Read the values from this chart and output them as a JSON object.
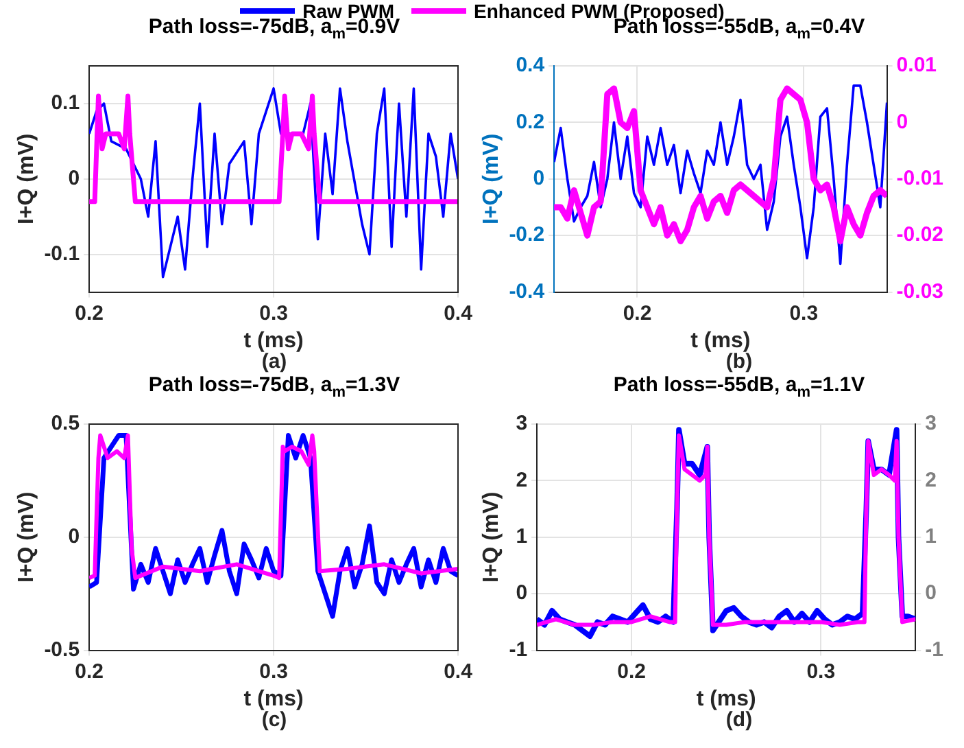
{
  "chart_data": [
    {
      "type": "line",
      "title": "Path loss=-75dB, a$_{m}$=0.9V",
      "xlabel": "t (ms)",
      "ylabel": "I+Q (mV)",
      "annotations": [
        "(a)"
      ],
      "xlim": [
        0.2,
        0.4
      ],
      "xticks": [
        0.2,
        0.3,
        0.4
      ],
      "ylim": [
        -0.15,
        0.15
      ],
      "yticks": [
        -0.1,
        0,
        0.1
      ],
      "grid": true,
      "legend": "top",
      "x": [
        0.2,
        0.204,
        0.208,
        0.212,
        0.216,
        0.22,
        0.224,
        0.228,
        0.232,
        0.236,
        0.24,
        0.244,
        0.248,
        0.252,
        0.256,
        0.26,
        0.264,
        0.268,
        0.272,
        0.276,
        0.28,
        0.284,
        0.288,
        0.292,
        0.296,
        0.3,
        0.304,
        0.308,
        0.312,
        0.316,
        0.32,
        0.324,
        0.328,
        0.332,
        0.336,
        0.34,
        0.344,
        0.348,
        0.352,
        0.356,
        0.36,
        0.364,
        0.368,
        0.372,
        0.376,
        0.38,
        0.384,
        0.388,
        0.392,
        0.396,
        0.4
      ],
      "series": [
        {
          "name": "Raw PWM",
          "color": "#0000ff",
          "values": [
            0.06,
            0.09,
            0.1,
            0.05,
            null,
            0.04,
            null,
            0.0,
            -0.05,
            0.05,
            -0.13,
            null,
            -0.05,
            -0.12,
            0.0,
            0.1,
            -0.09,
            0.06,
            -0.06,
            0.02,
            null,
            0.05,
            -0.06,
            0.06,
            null,
            0.12,
            0.06,
            0.06,
            null,
            0.06,
            0.1,
            -0.08,
            0.06,
            -0.02,
            0.12,
            0.05,
            null,
            -0.06,
            -0.1,
            0.06,
            0.12,
            -0.09,
            0.1,
            -0.05,
            0.12,
            -0.12,
            0.06,
            0.03,
            -0.05,
            0.06,
            0.0
          ]
        },
        {
          "name": "Enhanced PWM (Proposed)",
          "color": "#ff00ff",
          "x": [
            0.2,
            0.203,
            0.205,
            0.207,
            0.209,
            0.212,
            0.216,
            0.219,
            0.221,
            0.222,
            0.225,
            0.23,
            0.26,
            0.3,
            0.303,
            0.305,
            0.306,
            0.308,
            0.31,
            0.315,
            0.319,
            0.321,
            0.322,
            0.325,
            0.33,
            0.36,
            0.4
          ],
          "values": [
            -0.03,
            -0.03,
            0.11,
            0.04,
            0.06,
            0.06,
            0.06,
            0.04,
            0.11,
            0.06,
            -0.03,
            -0.03,
            -0.03,
            -0.03,
            -0.03,
            0.06,
            0.11,
            0.04,
            0.06,
            0.06,
            0.04,
            0.11,
            0.06,
            -0.03,
            -0.03,
            -0.03,
            -0.03
          ]
        }
      ]
    },
    {
      "type": "line",
      "title": "Path loss=-55dB, a$_{m}$=0.4V",
      "xlabel": "t (ms)",
      "ylabel": "I+Q (mV)",
      "annotations": [
        "(b)"
      ],
      "xlim": [
        0.15,
        0.35
      ],
      "xticks": [
        0.2,
        0.3
      ],
      "ylim": [
        -0.4,
        0.4
      ],
      "yticks": [
        -0.4,
        -0.2,
        0,
        0.2,
        0.4
      ],
      "y2lim": [
        -0.03,
        0.01
      ],
      "y2ticks": [
        -0.03,
        -0.02,
        -0.01,
        0,
        0.01
      ],
      "grid": true,
      "x": [
        0.15,
        0.154,
        0.158,
        0.162,
        0.166,
        0.17,
        0.174,
        0.178,
        0.182,
        0.186,
        0.19,
        0.194,
        0.198,
        0.202,
        0.206,
        0.21,
        0.214,
        0.218,
        0.222,
        0.226,
        0.23,
        0.234,
        0.238,
        0.242,
        0.246,
        0.25,
        0.254,
        0.258,
        0.262,
        0.266,
        0.27,
        0.274,
        0.278,
        0.282,
        0.286,
        0.29,
        0.294,
        0.298,
        0.302,
        0.306,
        0.31,
        0.314,
        0.318,
        0.322,
        0.326,
        0.33,
        0.334,
        0.338,
        0.342,
        0.346,
        0.35
      ],
      "series": [
        {
          "color": "#0000ff",
          "values": [
            0.06,
            0.18,
            0.0,
            -0.15,
            -0.1,
            -0.06,
            0.06,
            -0.1,
            0.0,
            0.2,
            0.0,
            0.15,
            -0.05,
            -0.1,
            0.15,
            0.05,
            0.18,
            0.05,
            0.12,
            -0.05,
            0.1,
            0.02,
            -0.05,
            0.1,
            0.05,
            0.2,
            0.05,
            0.15,
            0.28,
            0.05,
            0.0,
            0.05,
            -0.18,
            -0.08,
            0.15,
            0.22,
            0.05,
            -0.1,
            -0.28,
            -0.1,
            0.22,
            0.25,
            0.0,
            -0.3,
            0.05,
            0.33,
            0.33,
            0.2,
            0.05,
            -0.1,
            0.27
          ]
        },
        {
          "color": "#ff00ff",
          "axis": "y2",
          "values": [
            -0.015,
            -0.015,
            -0.017,
            -0.012,
            -0.016,
            -0.02,
            -0.015,
            -0.014,
            0.005,
            0.006,
            0.0,
            -0.001,
            0.002,
            -0.012,
            -0.015,
            -0.018,
            -0.015,
            -0.02,
            -0.018,
            -0.021,
            -0.019,
            -0.015,
            -0.013,
            -0.017,
            -0.014,
            -0.013,
            -0.016,
            -0.012,
            -0.011,
            -0.012,
            -0.013,
            -0.014,
            -0.015,
            -0.01,
            0.004,
            0.006,
            0.005,
            0.004,
            0.0,
            -0.01,
            -0.012,
            -0.011,
            -0.015,
            -0.021,
            -0.015,
            -0.018,
            -0.02,
            -0.016,
            -0.013,
            -0.012,
            -0.013
          ]
        }
      ]
    },
    {
      "type": "line",
      "title": "Path loss=-75dB,  a$_{m}$=1.3V",
      "xlabel": "t (ms)",
      "ylabel": "I+Q (mV)",
      "annotations": [
        "(c)"
      ],
      "xlim": [
        0.2,
        0.4
      ],
      "xticks": [
        0.2,
        0.3,
        0.4
      ],
      "ylim": [
        -0.5,
        0.5
      ],
      "yticks": [
        -0.5,
        0,
        0.5
      ],
      "grid": true,
      "x": [
        0.2,
        0.204,
        0.208,
        0.212,
        0.216,
        0.22,
        0.224,
        0.228,
        0.232,
        0.236,
        0.24,
        0.244,
        0.248,
        0.252,
        0.256,
        0.26,
        0.264,
        0.268,
        0.272,
        0.276,
        0.28,
        0.284,
        0.288,
        0.292,
        0.296,
        0.3,
        0.304,
        0.308,
        0.312,
        0.316,
        0.32,
        0.324,
        0.328,
        0.332,
        0.336,
        0.34,
        0.344,
        0.348,
        0.352,
        0.356,
        0.36,
        0.364,
        0.368,
        0.372,
        0.376,
        0.38,
        0.384,
        0.388,
        0.392,
        0.396,
        0.4
      ],
      "series": [
        {
          "color": "#0000ff",
          "values": [
            -0.22,
            -0.2,
            0.35,
            0.4,
            0.45,
            0.45,
            -0.23,
            -0.12,
            -0.2,
            -0.05,
            -0.15,
            -0.25,
            -0.1,
            -0.2,
            -0.12,
            -0.05,
            -0.2,
            -0.08,
            0.03,
            -0.15,
            -0.25,
            -0.03,
            -0.1,
            -0.18,
            -0.05,
            -0.15,
            -0.17,
            0.45,
            0.35,
            0.45,
            0.35,
            -0.15,
            -0.25,
            -0.35,
            -0.15,
            -0.05,
            -0.22,
            -0.12,
            0.05,
            -0.2,
            -0.25,
            -0.1,
            -0.2,
            -0.12,
            -0.05,
            -0.22,
            -0.1,
            -0.2,
            -0.05,
            -0.15,
            -0.17
          ]
        },
        {
          "color": "#ff00ff",
          "x": [
            0.2,
            0.203,
            0.205,
            0.206,
            0.21,
            0.215,
            0.219,
            0.221,
            0.223,
            0.225,
            0.24,
            0.26,
            0.28,
            0.3,
            0.303,
            0.305,
            0.306,
            0.31,
            0.315,
            0.319,
            0.321,
            0.322,
            0.325,
            0.34,
            0.36,
            0.38,
            0.4
          ],
          "values": [
            -0.18,
            -0.17,
            0.35,
            0.45,
            0.35,
            0.38,
            0.35,
            0.45,
            -0.05,
            -0.18,
            -0.13,
            -0.15,
            -0.12,
            -0.17,
            -0.18,
            0.4,
            0.38,
            0.4,
            0.38,
            0.32,
            0.45,
            0.38,
            -0.15,
            -0.14,
            -0.12,
            -0.16,
            -0.14
          ]
        }
      ]
    },
    {
      "type": "line",
      "title": "Path loss=-55dB, a$_{m}$=1.1V",
      "xlabel": "t (ms)",
      "ylabel": "I+Q (mV)",
      "annotations": [
        "(d)"
      ],
      "xlim": [
        0.15,
        0.35
      ],
      "xticks": [
        0.2,
        0.3
      ],
      "ylim": [
        -1,
        3
      ],
      "yticks": [
        -1,
        0,
        1,
        2,
        3
      ],
      "y2lim": [
        -1,
        3
      ],
      "y2ticks": [
        -1,
        0,
        1,
        2,
        3
      ],
      "grid": true,
      "series": [
        {
          "color": "#0000ff",
          "x": [
            0.15,
            0.154,
            0.158,
            0.162,
            0.166,
            0.17,
            0.174,
            0.178,
            0.182,
            0.186,
            0.19,
            0.194,
            0.198,
            0.202,
            0.206,
            0.21,
            0.214,
            0.218,
            0.222,
            0.224,
            0.225,
            0.228,
            0.232,
            0.236,
            0.24,
            0.241,
            0.243,
            0.246,
            0.25,
            0.254,
            0.258,
            0.262,
            0.266,
            0.27,
            0.274,
            0.278,
            0.282,
            0.286,
            0.29,
            0.294,
            0.298,
            0.302,
            0.306,
            0.31,
            0.314,
            0.318,
            0.322,
            0.324,
            0.325,
            0.328,
            0.332,
            0.336,
            0.34,
            0.341,
            0.343,
            0.346,
            0.35
          ],
          "values": [
            -0.45,
            -0.55,
            -0.3,
            -0.45,
            -0.5,
            -0.55,
            -0.65,
            -0.75,
            -0.5,
            -0.55,
            -0.4,
            -0.45,
            -0.5,
            -0.35,
            -0.2,
            -0.45,
            -0.5,
            -0.4,
            -0.5,
            1.5,
            2.9,
            2.3,
            2.3,
            2.1,
            2.6,
            1.0,
            -0.65,
            -0.5,
            -0.3,
            -0.25,
            -0.4,
            -0.5,
            -0.55,
            -0.5,
            -0.6,
            -0.4,
            -0.3,
            -0.5,
            -0.35,
            -0.5,
            -0.3,
            -0.45,
            -0.55,
            -0.5,
            -0.4,
            -0.45,
            -0.35,
            1.5,
            2.7,
            2.2,
            2.2,
            2.1,
            2.9,
            1.0,
            -0.4,
            -0.4,
            -0.45
          ]
        },
        {
          "color": "#ff00ff",
          "x": [
            0.15,
            0.16,
            0.17,
            0.18,
            0.19,
            0.2,
            0.21,
            0.22,
            0.223,
            0.224,
            0.225,
            0.228,
            0.232,
            0.236,
            0.239,
            0.24,
            0.241,
            0.243,
            0.25,
            0.26,
            0.27,
            0.28,
            0.29,
            0.3,
            0.31,
            0.32,
            0.323,
            0.324,
            0.325,
            0.328,
            0.332,
            0.336,
            0.339,
            0.34,
            0.341,
            0.343,
            0.35
          ],
          "values": [
            -0.55,
            -0.45,
            -0.55,
            -0.55,
            -0.5,
            -0.5,
            -0.4,
            -0.5,
            -0.5,
            1.5,
            2.8,
            2.2,
            2.1,
            2.0,
            2.1,
            2.6,
            1.0,
            -0.55,
            -0.55,
            -0.5,
            -0.5,
            -0.5,
            -0.5,
            -0.5,
            -0.55,
            -0.5,
            -0.5,
            1.5,
            2.7,
            2.1,
            2.2,
            2.1,
            2.0,
            2.7,
            1.0,
            -0.5,
            -0.45
          ]
        }
      ]
    }
  ]
}
